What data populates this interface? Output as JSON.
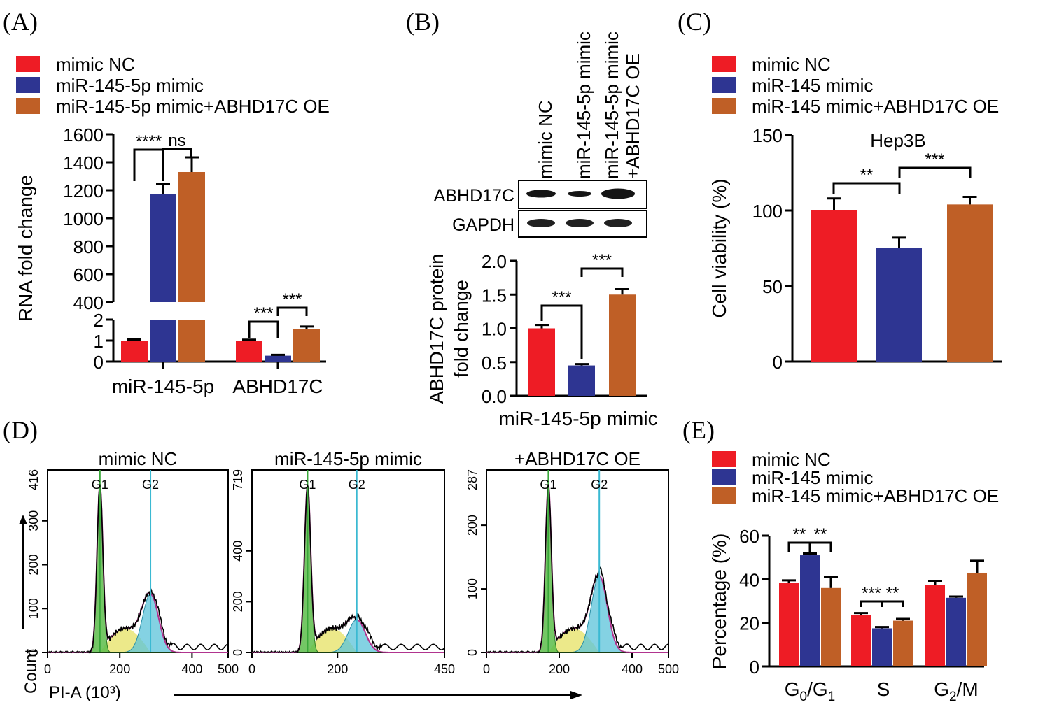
{
  "colors": {
    "red": "#ee1c25",
    "blue": "#2e3592",
    "orange": "#bf5f26",
    "green": "#5cbd4a",
    "yellow": "#e5e263",
    "cyan": "#5bc3d9",
    "magenta": "#b1348f"
  },
  "panels": {
    "A": "(A)",
    "B": "(B)",
    "C": "(C)",
    "D": "(D)",
    "E": "(E)"
  },
  "chart_data": [
    {
      "id": "A",
      "type": "bar",
      "ylabel": "RNA fold change",
      "broken_axis": {
        "lower": {
          "ylim": [
            0,
            2
          ],
          "ticks": [
            0,
            1,
            2
          ]
        },
        "upper": {
          "ylim": [
            400,
            1600
          ],
          "ticks": [
            400,
            600,
            800,
            1000,
            1200,
            1400,
            1600
          ]
        }
      },
      "categories": [
        "miR-145-5p",
        "ABHD17C"
      ],
      "legend": [
        "mimic NC",
        "miR-145-5p mimic",
        "miR-145-5p mimic+ABHD17C OE"
      ],
      "series": [
        {
          "name": "mimic NC",
          "values": [
            1.0,
            1.0
          ],
          "errors": [
            0.05,
            0.04
          ]
        },
        {
          "name": "miR-145-5p mimic",
          "values": [
            1170,
            0.28
          ],
          "errors": [
            75,
            0.04
          ]
        },
        {
          "name": "miR-145-5p mimic+ABHD17C OE",
          "values": [
            1330,
            1.55
          ],
          "errors": [
            105,
            0.12
          ]
        }
      ],
      "annotations": [
        "****",
        "ns",
        "***",
        "***"
      ]
    },
    {
      "id": "B",
      "type": "bar",
      "ylabel_lines": [
        "ABHD17C protein",
        "fold change"
      ],
      "xlabel": "miR-145-5p mimic",
      "ylim": [
        0,
        2.0
      ],
      "ticks": [
        "0.0",
        "0.5",
        "1.0",
        "1.5",
        "2.0"
      ],
      "categories": [
        "mimic NC",
        "miR-145-5p mimic",
        "miR-145-5p mimic +ABHD17C OE"
      ],
      "values": [
        1.0,
        0.45,
        1.5
      ],
      "errors": [
        0.05,
        0.02,
        0.08
      ],
      "blot_lanes": [
        [
          "mimic NC"
        ],
        [
          "miR-145-5p mimic"
        ],
        [
          "miR-145-5p mimic",
          "+ABHD17C OE"
        ]
      ],
      "blot_rows": [
        "ABHD17C",
        "GAPDH"
      ],
      "annotations": [
        "***",
        "***"
      ]
    },
    {
      "id": "C",
      "type": "bar",
      "title": "Hep3B",
      "ylabel": "Cell viability (%)",
      "ylim": [
        0,
        150
      ],
      "ticks": [
        0,
        50,
        100,
        150
      ],
      "categories": [
        "mimic NC",
        "miR-145 mimic",
        "miR-145 mimic+ABHD17C OE"
      ],
      "values": [
        100,
        75,
        104
      ],
      "errors": [
        8,
        7,
        5
      ],
      "legend": [
        "mimic NC",
        "miR-145 mimic",
        "miR-145 mimic+ABHD17C OE"
      ],
      "annotations": [
        "**",
        "***"
      ]
    },
    {
      "id": "D",
      "type": "histogram",
      "xlabel": "PI-A (10³)",
      "ylabel": "Count",
      "panels": [
        {
          "title": "mimic NC",
          "ymax": "416",
          "yticks": [
            "0",
            "100",
            "200",
            "300"
          ],
          "xticks": [
            "0",
            "200",
            "400",
            "500"
          ],
          "peaks": [
            "G1",
            "G2"
          ],
          "g1": 145,
          "g2": 285,
          "xmax": 500,
          "g1_height": 0.92,
          "g2_height": 0.32
        },
        {
          "title": "miR-145-5p mimic",
          "ymax": "719",
          "yticks": [
            "0",
            "200",
            "400"
          ],
          "xticks": [
            "0",
            "200",
            "450"
          ],
          "peaks": [
            "G1",
            "G2"
          ],
          "g1": 130,
          "g2": 245,
          "xmax": 450,
          "g1_height": 0.92,
          "g2_height": 0.18
        },
        {
          "title": "+ABHD17C OE",
          "ymax": "287",
          "yticks": [
            "0",
            "100",
            "200"
          ],
          "xticks": [
            "0",
            "200",
            "400",
            "500"
          ],
          "peaks": [
            "G1",
            "G2"
          ],
          "g1": 170,
          "g2": 310,
          "xmax": 500,
          "g1_height": 0.92,
          "g2_height": 0.42
        }
      ]
    },
    {
      "id": "E",
      "type": "bar",
      "ylabel": "Percentage (%)",
      "ylim": [
        0,
        60
      ],
      "ticks": [
        0,
        20,
        40,
        60
      ],
      "categories": [
        "G0/G1",
        "S",
        "G2/M"
      ],
      "legend": [
        "mimic NC",
        "miR-145 mimic",
        "miR-145 mimic+ABHD17C OE"
      ],
      "series": [
        {
          "name": "mimic NC",
          "values": [
            38.5,
            23.5,
            37.5
          ],
          "errors": [
            1.0,
            1.0,
            1.8
          ]
        },
        {
          "name": "miR-145 mimic",
          "values": [
            51,
            17.5,
            31.5
          ],
          "errors": [
            0.8,
            0.6,
            0.6
          ]
        },
        {
          "name": "miR-145 mimic+ABHD17C OE",
          "values": [
            36,
            21,
            43
          ],
          "errors": [
            5,
            0.8,
            5.5
          ]
        }
      ],
      "annotations": [
        "**",
        "**",
        "***",
        "**"
      ]
    }
  ]
}
